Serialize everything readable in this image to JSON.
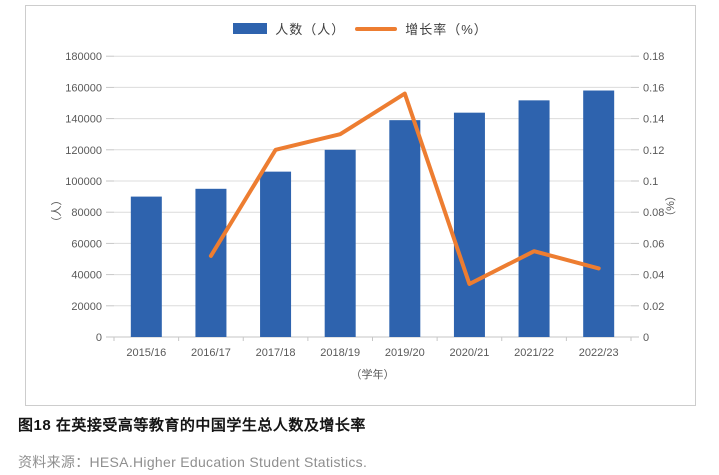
{
  "legend": {
    "bar_label": "人数（人）",
    "line_label": "增长率（%）"
  },
  "chart_data": {
    "type": "bar",
    "subtype": "bar-line-combo",
    "title": "",
    "categories": [
      "2015/16",
      "2016/17",
      "2017/18",
      "2018/19",
      "2019/20",
      "2020/21",
      "2021/22",
      "2022/23"
    ],
    "series": [
      {
        "name": "人数（人）",
        "type": "bar",
        "axis": "left",
        "color": "#2E63AE",
        "values": [
          90000,
          95000,
          106000,
          120000,
          139000,
          143800,
          151700,
          158000
        ]
      },
      {
        "name": "增长率（%）",
        "type": "line",
        "axis": "right",
        "color": "#ED7D31",
        "values": [
          null,
          0.052,
          0.12,
          0.13,
          0.156,
          0.034,
          0.055,
          0.044
        ]
      }
    ],
    "left_axis": {
      "label": "（人）",
      "min": 0,
      "max": 180000,
      "step": 20000,
      "ticks": [
        0,
        20000,
        40000,
        60000,
        80000,
        100000,
        120000,
        140000,
        160000,
        180000
      ]
    },
    "right_axis": {
      "label": "（%）",
      "min": 0,
      "max": 0.18,
      "step": 0.02,
      "ticks": [
        0,
        0.02,
        0.04,
        0.06,
        0.08,
        0.1,
        0.12,
        0.14,
        0.16,
        0.18
      ]
    },
    "xlabel": "（学年）",
    "grid": true,
    "legend_position": "top"
  },
  "caption": {
    "title": "图18 在英接受高等教育的中国学生总人数及增长率"
  },
  "source": {
    "text": "资料来源：HESA.Higher Education Student Statistics."
  },
  "colors": {
    "bar": "#2E63AE",
    "line": "#ED7D31",
    "gridline": "#dcdcdc",
    "axis_line": "#c6c6c6",
    "tick_text": "#595959",
    "panel_border": "#cdcdcd"
  }
}
